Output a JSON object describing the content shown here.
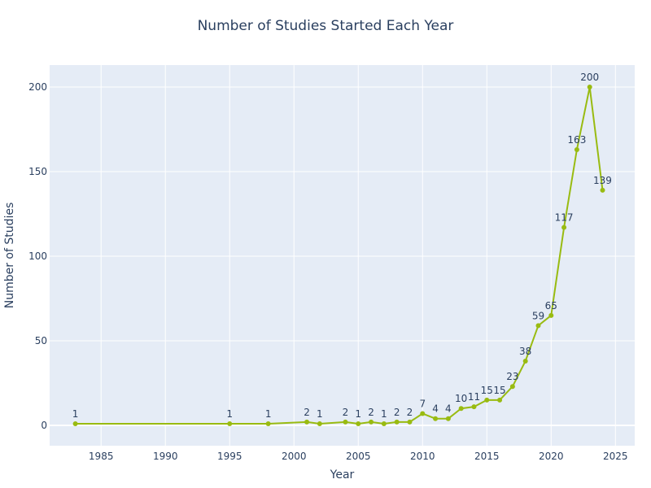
{
  "chart_data": {
    "type": "line",
    "title": "Number of Studies Started Each Year",
    "xlabel": "Year",
    "ylabel": "Number of Studies",
    "xlim": [
      1981,
      2026.5
    ],
    "ylim": [
      -12,
      213
    ],
    "xticks": [
      1985,
      1990,
      1995,
      2000,
      2005,
      2010,
      2015,
      2020,
      2025
    ],
    "yticks": [
      0,
      50,
      100,
      150,
      200
    ],
    "grid": true,
    "line_color": "#99bb11",
    "plot_background": "#e5ecf6",
    "grid_color": "#ffffff",
    "x": [
      1983,
      1995,
      1998,
      2001,
      2002,
      2004,
      2005,
      2006,
      2007,
      2008,
      2009,
      2010,
      2011,
      2012,
      2013,
      2014,
      2015,
      2016,
      2017,
      2018,
      2019,
      2020,
      2021,
      2022,
      2023,
      2024
    ],
    "y": [
      1,
      1,
      1,
      2,
      1,
      2,
      1,
      2,
      1,
      2,
      2,
      7,
      4,
      4,
      10,
      11,
      15,
      15,
      23,
      38,
      59,
      65,
      117,
      163,
      200,
      139
    ]
  }
}
